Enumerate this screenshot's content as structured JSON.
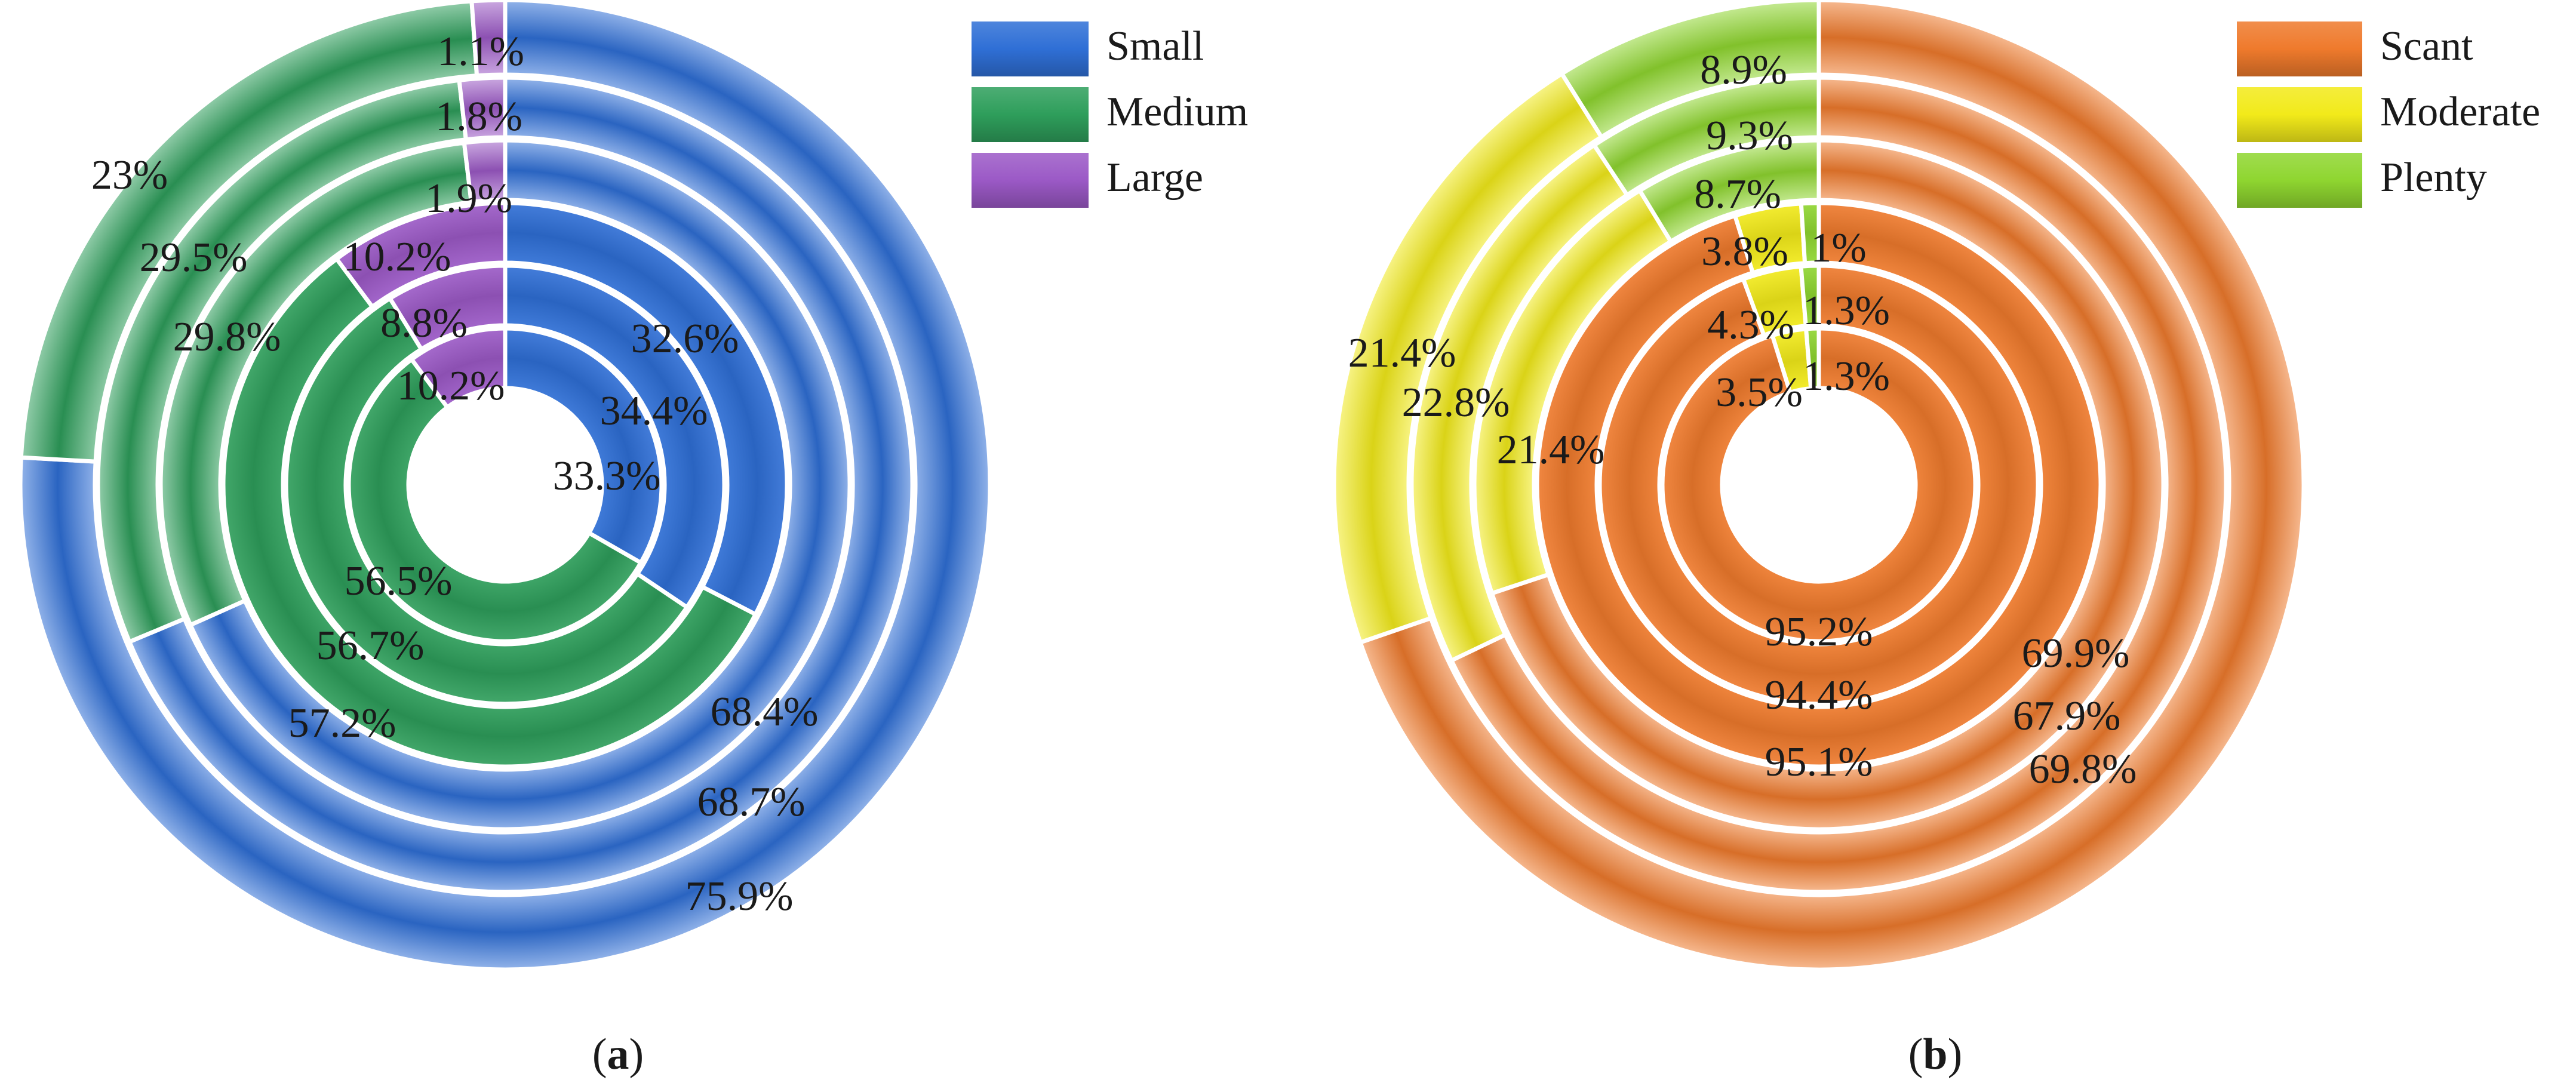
{
  "chart_data": [
    {
      "type": "pie",
      "subtype": "multi-ring donut",
      "panel_label": "a",
      "caption_open": "(",
      "caption_close": ")",
      "legend": [
        "Small",
        "Medium",
        "Large"
      ],
      "colors": {
        "Small": "#2f6fd6",
        "Medium": "#2e9e5b",
        "Large": "#9b59c6"
      },
      "rings_inner_to_outer": [
        {
          "values": {
            "Small": 33.3,
            "Medium": 56.5,
            "Large": 10.2
          },
          "labels": [
            "33.3%",
            "56.5%",
            "10.2%"
          ]
        },
        {
          "values": {
            "Small": 34.4,
            "Medium": 56.7,
            "Large": 8.8
          },
          "labels": [
            "34.4%",
            "56.7%",
            "8.8%"
          ]
        },
        {
          "values": {
            "Small": 32.6,
            "Medium": 57.2,
            "Large": 10.2
          },
          "labels": [
            "32.6%",
            "57.2%",
            "10.2%"
          ]
        },
        {
          "values": {
            "Small": 68.4,
            "Medium": 29.8,
            "Large": 1.9
          },
          "labels": [
            "68.4%",
            "29.8%",
            "1.9%"
          ]
        },
        {
          "values": {
            "Small": 68.7,
            "Medium": 29.5,
            "Large": 1.8
          },
          "labels": [
            "68.7%",
            "29.5%",
            "1.8%"
          ]
        },
        {
          "values": {
            "Small": 75.9,
            "Medium": 23,
            "Large": 1.1
          },
          "labels": [
            "75.9%",
            "23%",
            "1.1%"
          ]
        }
      ]
    },
    {
      "type": "pie",
      "subtype": "multi-ring donut",
      "panel_label": "b",
      "caption_open": "(",
      "caption_close": ")",
      "legend": [
        "Scant",
        "Moderate",
        "Plenty"
      ],
      "colors": {
        "Scant": "#ef7a2c",
        "Moderate": "#f2ea1a",
        "Plenty": "#8fd630"
      },
      "rings_inner_to_outer": [
        {
          "values": {
            "Scant": 95.2,
            "Moderate": 3.5,
            "Plenty": 1.3
          },
          "labels": [
            "95.2%",
            "3.5%",
            "1.3%"
          ]
        },
        {
          "values": {
            "Scant": 94.4,
            "Moderate": 4.3,
            "Plenty": 1.3
          },
          "labels": [
            "94.4%",
            "4.3%",
            "1.3%"
          ]
        },
        {
          "values": {
            "Scant": 95.1,
            "Moderate": 3.8,
            "Plenty": 1
          },
          "labels": [
            "95.1%",
            "3.8%",
            "1%"
          ]
        },
        {
          "values": {
            "Scant": 69.9,
            "Moderate": 21.4,
            "Plenty": 8.7
          },
          "labels": [
            "69.9%",
            "21.4%",
            "8.7%"
          ]
        },
        {
          "values": {
            "Scant": 67.9,
            "Moderate": 22.8,
            "Plenty": 9.3
          },
          "labels": [
            "67.9%",
            "22.8%",
            "9.3%"
          ]
        },
        {
          "values": {
            "Scant": 69.8,
            "Moderate": 21.4,
            "Plenty": 8.9
          },
          "labels": [
            "69.8%",
            "21.4%",
            "8.9%"
          ]
        }
      ]
    }
  ]
}
